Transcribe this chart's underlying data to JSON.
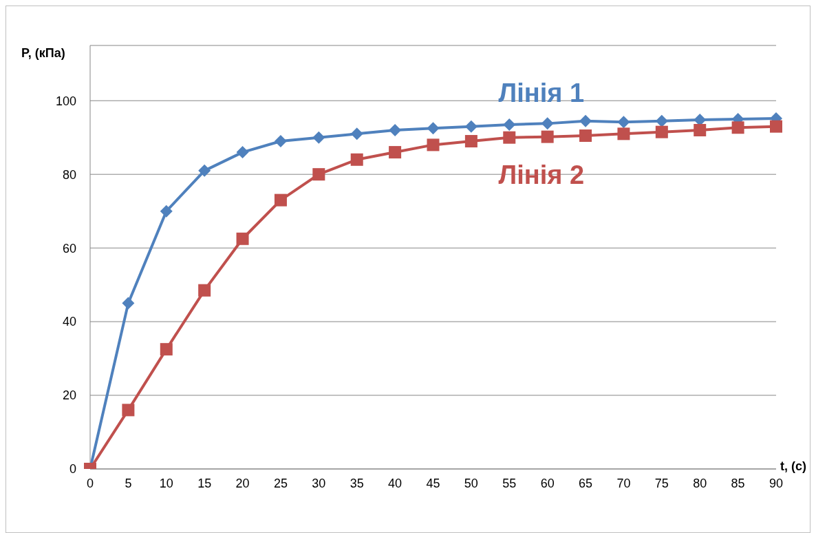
{
  "chart_data": {
    "type": "line",
    "xlabel": "t, (c)",
    "ylabel": "P, (кПа)",
    "categories": [
      "0",
      "5",
      "10",
      "15",
      "20",
      "25",
      "30",
      "35",
      "40",
      "45",
      "50",
      "55",
      "60",
      "65",
      "70",
      "75",
      "80",
      "85",
      "90"
    ],
    "series": [
      {
        "name": "Лінія 1",
        "color": "#4f81bd",
        "marker": "diamond",
        "values": [
          0,
          45,
          70,
          81,
          86,
          89,
          90,
          91,
          92,
          92.5,
          93,
          93.5,
          93.8,
          94.5,
          94.2,
          94.5,
          94.8,
          95,
          95.2
        ]
      },
      {
        "name": "Лінія 2",
        "color": "#c0504d",
        "marker": "square",
        "values": [
          0,
          16,
          32.5,
          48.5,
          62.5,
          73,
          80,
          84,
          86,
          88,
          89,
          90,
          90.2,
          90.5,
          91,
          91.5,
          92,
          92.7,
          93
        ]
      }
    ],
    "ylim": [
      0,
      115
    ],
    "yticks": [
      0,
      20,
      40,
      60,
      80,
      100
    ],
    "grid": "y",
    "legend": false,
    "line_style": "solid"
  }
}
